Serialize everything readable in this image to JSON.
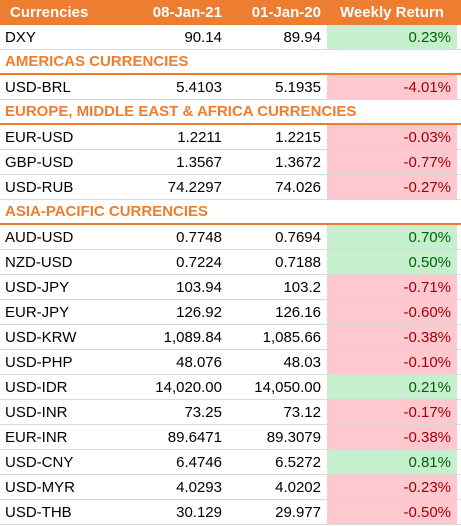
{
  "header": {
    "col_currencies": "Currencies",
    "col_date1": "08-Jan-21",
    "col_date2": "01-Jan-20",
    "col_return": "Weekly Return"
  },
  "colors": {
    "accent": "#ed7d31",
    "positive_fill": "#c6efce",
    "positive_text": "#006100",
    "negative_fill": "#ffc7ce",
    "negative_text": "#9c0006"
  },
  "rows": [
    {
      "type": "data",
      "pair": "DXY",
      "v1": "90.14",
      "v2": "89.94",
      "ret": "0.23%",
      "sign": "pos"
    },
    {
      "type": "section",
      "label": "AMERICAS CURRENCIES"
    },
    {
      "type": "data",
      "pair": "USD-BRL",
      "v1": "5.4103",
      "v2": "5.1935",
      "ret": "-4.01%",
      "sign": "neg"
    },
    {
      "type": "section",
      "label": "EUROPE, MIDDLE EAST & AFRICA CURRENCIES"
    },
    {
      "type": "data",
      "pair": "EUR-USD",
      "v1": "1.2211",
      "v2": "1.2215",
      "ret": "-0.03%",
      "sign": "neg"
    },
    {
      "type": "data",
      "pair": "GBP-USD",
      "v1": "1.3567",
      "v2": "1.3672",
      "ret": "-0.77%",
      "sign": "neg"
    },
    {
      "type": "data",
      "pair": "USD-RUB",
      "v1": "74.2297",
      "v2": "74.026",
      "ret": "-0.27%",
      "sign": "neg"
    },
    {
      "type": "section",
      "label": "ASIA-PACIFIC CURRENCIES"
    },
    {
      "type": "data",
      "pair": "AUD-USD",
      "v1": "0.7748",
      "v2": "0.7694",
      "ret": "0.70%",
      "sign": "pos"
    },
    {
      "type": "data",
      "pair": "NZD-USD",
      "v1": "0.7224",
      "v2": "0.7188",
      "ret": "0.50%",
      "sign": "pos"
    },
    {
      "type": "data",
      "pair": "USD-JPY",
      "v1": "103.94",
      "v2": "103.2",
      "ret": "-0.71%",
      "sign": "neg"
    },
    {
      "type": "data",
      "pair": "EUR-JPY",
      "v1": "126.92",
      "v2": "126.16",
      "ret": "-0.60%",
      "sign": "neg"
    },
    {
      "type": "data",
      "pair": "USD-KRW",
      "v1": "1,089.84",
      "v2": "1,085.66",
      "ret": "-0.38%",
      "sign": "neg"
    },
    {
      "type": "data",
      "pair": "USD-PHP",
      "v1": "48.076",
      "v2": "48.03",
      "ret": "-0.10%",
      "sign": "neg"
    },
    {
      "type": "data",
      "pair": "USD-IDR",
      "v1": "14,020.00",
      "v2": "14,050.00",
      "ret": "0.21%",
      "sign": "pos"
    },
    {
      "type": "data",
      "pair": "USD-INR",
      "v1": "73.25",
      "v2": "73.12",
      "ret": "-0.17%",
      "sign": "neg"
    },
    {
      "type": "data",
      "pair": "EUR-INR",
      "v1": "89.6471",
      "v2": "89.3079",
      "ret": "-0.38%",
      "sign": "neg"
    },
    {
      "type": "data",
      "pair": "USD-CNY",
      "v1": "6.4746",
      "v2": "6.5272",
      "ret": "0.81%",
      "sign": "pos"
    },
    {
      "type": "data",
      "pair": "USD-MYR",
      "v1": "4.0293",
      "v2": "4.0202",
      "ret": "-0.23%",
      "sign": "neg"
    },
    {
      "type": "data",
      "pair": "USD-THB",
      "v1": "30.129",
      "v2": "29.977",
      "ret": "-0.50%",
      "sign": "neg"
    }
  ]
}
